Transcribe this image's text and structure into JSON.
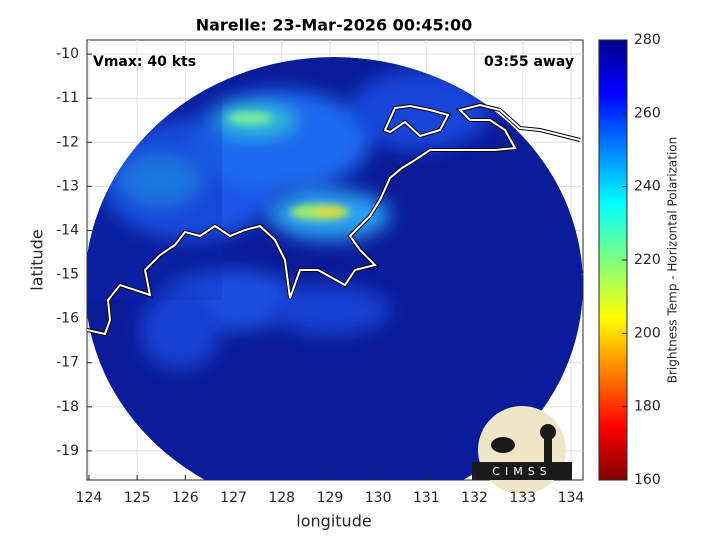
{
  "chart_data": {
    "type": "map",
    "title": "Narelle: 23-Mar-2026 00:45:00",
    "annotations": [
      "Vmax: 40 kts",
      "03:55 away"
    ],
    "xlabel": "longitude",
    "ylabel": "latitude",
    "xlim": [
      123.96,
      134.25
    ],
    "xticks": [
      124,
      125,
      126,
      127,
      128,
      129,
      130,
      131,
      132,
      133,
      134
    ],
    "ylim": [
      -19.66,
      -9.68
    ],
    "yticks": [
      -19,
      -18,
      -17,
      -16,
      -15,
      -14,
      -13,
      -12,
      -11,
      -10
    ],
    "grid": true,
    "colorbar": {
      "label": "Brightness Temp - Horizontal Polarization",
      "lim": [
        160,
        280
      ],
      "ticks": [
        160,
        180,
        200,
        220,
        240,
        260,
        280
      ]
    },
    "logo": "CIMSS"
  }
}
